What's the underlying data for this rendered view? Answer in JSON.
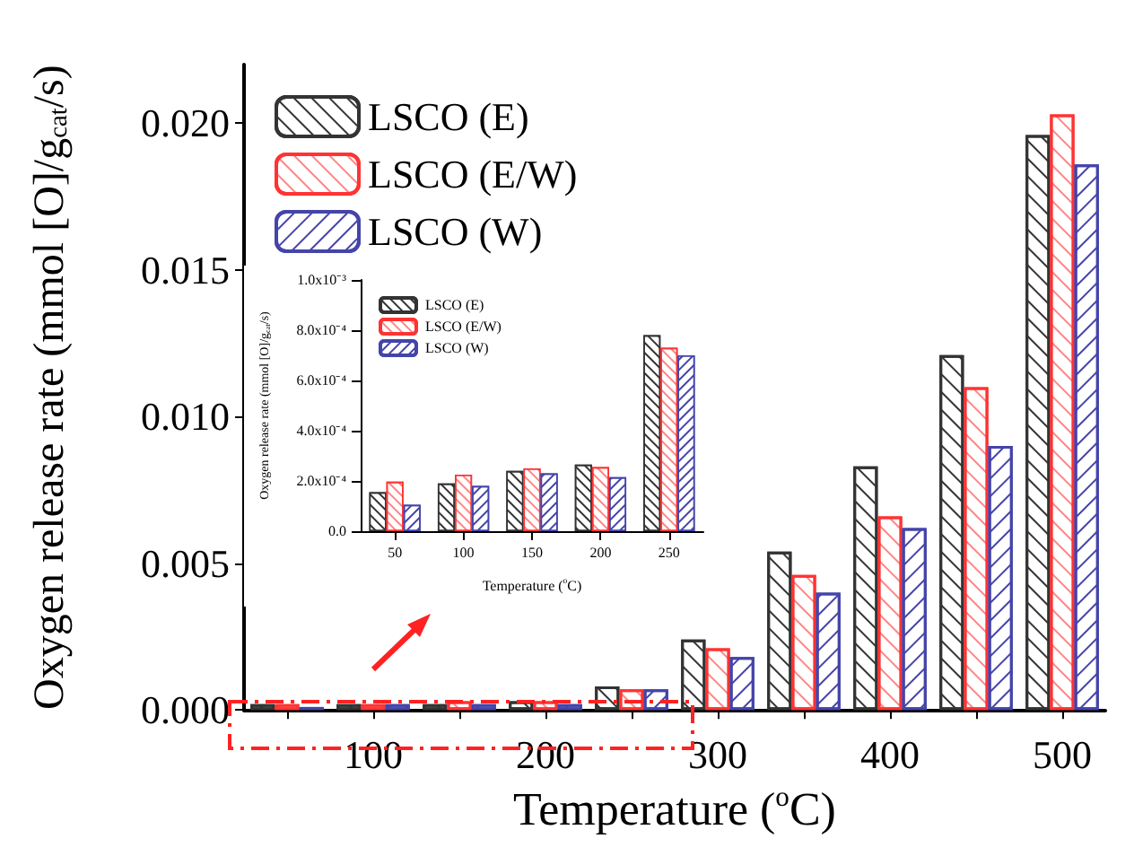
{
  "chart_data": [
    {
      "type": "bar",
      "xlabel": "Temperature ($^{o}$C)",
      "ylabel": "Oxygen release rate (mmol [O]/g$_{cat}$/s)",
      "categories": [
        null,
        "100",
        null,
        "200",
        null,
        "300",
        null,
        "400",
        null,
        "500"
      ],
      "series": [
        {
          "name": "LSCO (E)",
          "color": "#333333",
          "values": [
            0.0002,
            0.0002,
            0.0002,
            0.0003,
            0.0008,
            0.0024,
            0.0054,
            0.0083,
            0.0121,
            0.0196
          ]
        },
        {
          "name": "LSCO (E/W)",
          "color": "#ff3333",
          "values": [
            0.0002,
            0.0002,
            0.0003,
            0.0003,
            0.0007,
            0.0021,
            0.0046,
            0.0066,
            0.011,
            0.0203
          ]
        },
        {
          "name": "LSCO (W)",
          "color": "#4444aa",
          "values": [
            0.0001,
            0.0002,
            0.0002,
            0.0002,
            0.0007,
            0.0018,
            0.004,
            0.0062,
            0.009,
            0.0186
          ]
        }
      ],
      "ylim": [
        0,
        0.022
      ],
      "yticks": [
        {
          "value": 0,
          "label": "0.000"
        },
        {
          "value": 0.005,
          "label": "0.005"
        },
        {
          "value": 0.01,
          "label": "0.010"
        },
        {
          "value": 0.015,
          "label": "0.015"
        },
        {
          "value": 0.02,
          "label": "0.020"
        }
      ],
      "grid": false,
      "legend": "top left"
    },
    {
      "type": "bar",
      "xlabel": "Temperature ($^{o}$C)",
      "ylabel": "Oxygen release rate (mmol [O]/g$_{cat}$/s)",
      "categories": [
        "50",
        "100",
        "150",
        "200",
        "250"
      ],
      "series": [
        {
          "name": "LSCO (E)",
          "color": "#333333",
          "values": [
            0.000155,
            0.00019,
            0.00024,
            0.000265,
            0.00078
          ]
        },
        {
          "name": "LSCO (E/W)",
          "color": "#ff3333",
          "values": [
            0.000197,
            0.000225,
            0.00025,
            0.000255,
            0.00073
          ]
        },
        {
          "name": "LSCO (W)",
          "color": "#4444aa",
          "values": [
            0.000105,
            0.00018,
            0.00023,
            0.000215,
            0.0007
          ]
        }
      ],
      "ylim": [
        0,
        0.001
      ],
      "yticks": [
        {
          "value": 0,
          "label": "0.0"
        },
        {
          "value": 0.0002,
          "label": "2.0x10⁻⁴"
        },
        {
          "value": 0.0004,
          "label": "4.0x10⁻⁴"
        },
        {
          "value": 0.0006,
          "label": "6.0x10⁻⁴"
        },
        {
          "value": 0.0008,
          "label": "8.0x10⁻⁴"
        },
        {
          "value": 0.001,
          "label": "1.0x10⁻³"
        }
      ],
      "grid": false,
      "legend": "top left"
    }
  ]
}
